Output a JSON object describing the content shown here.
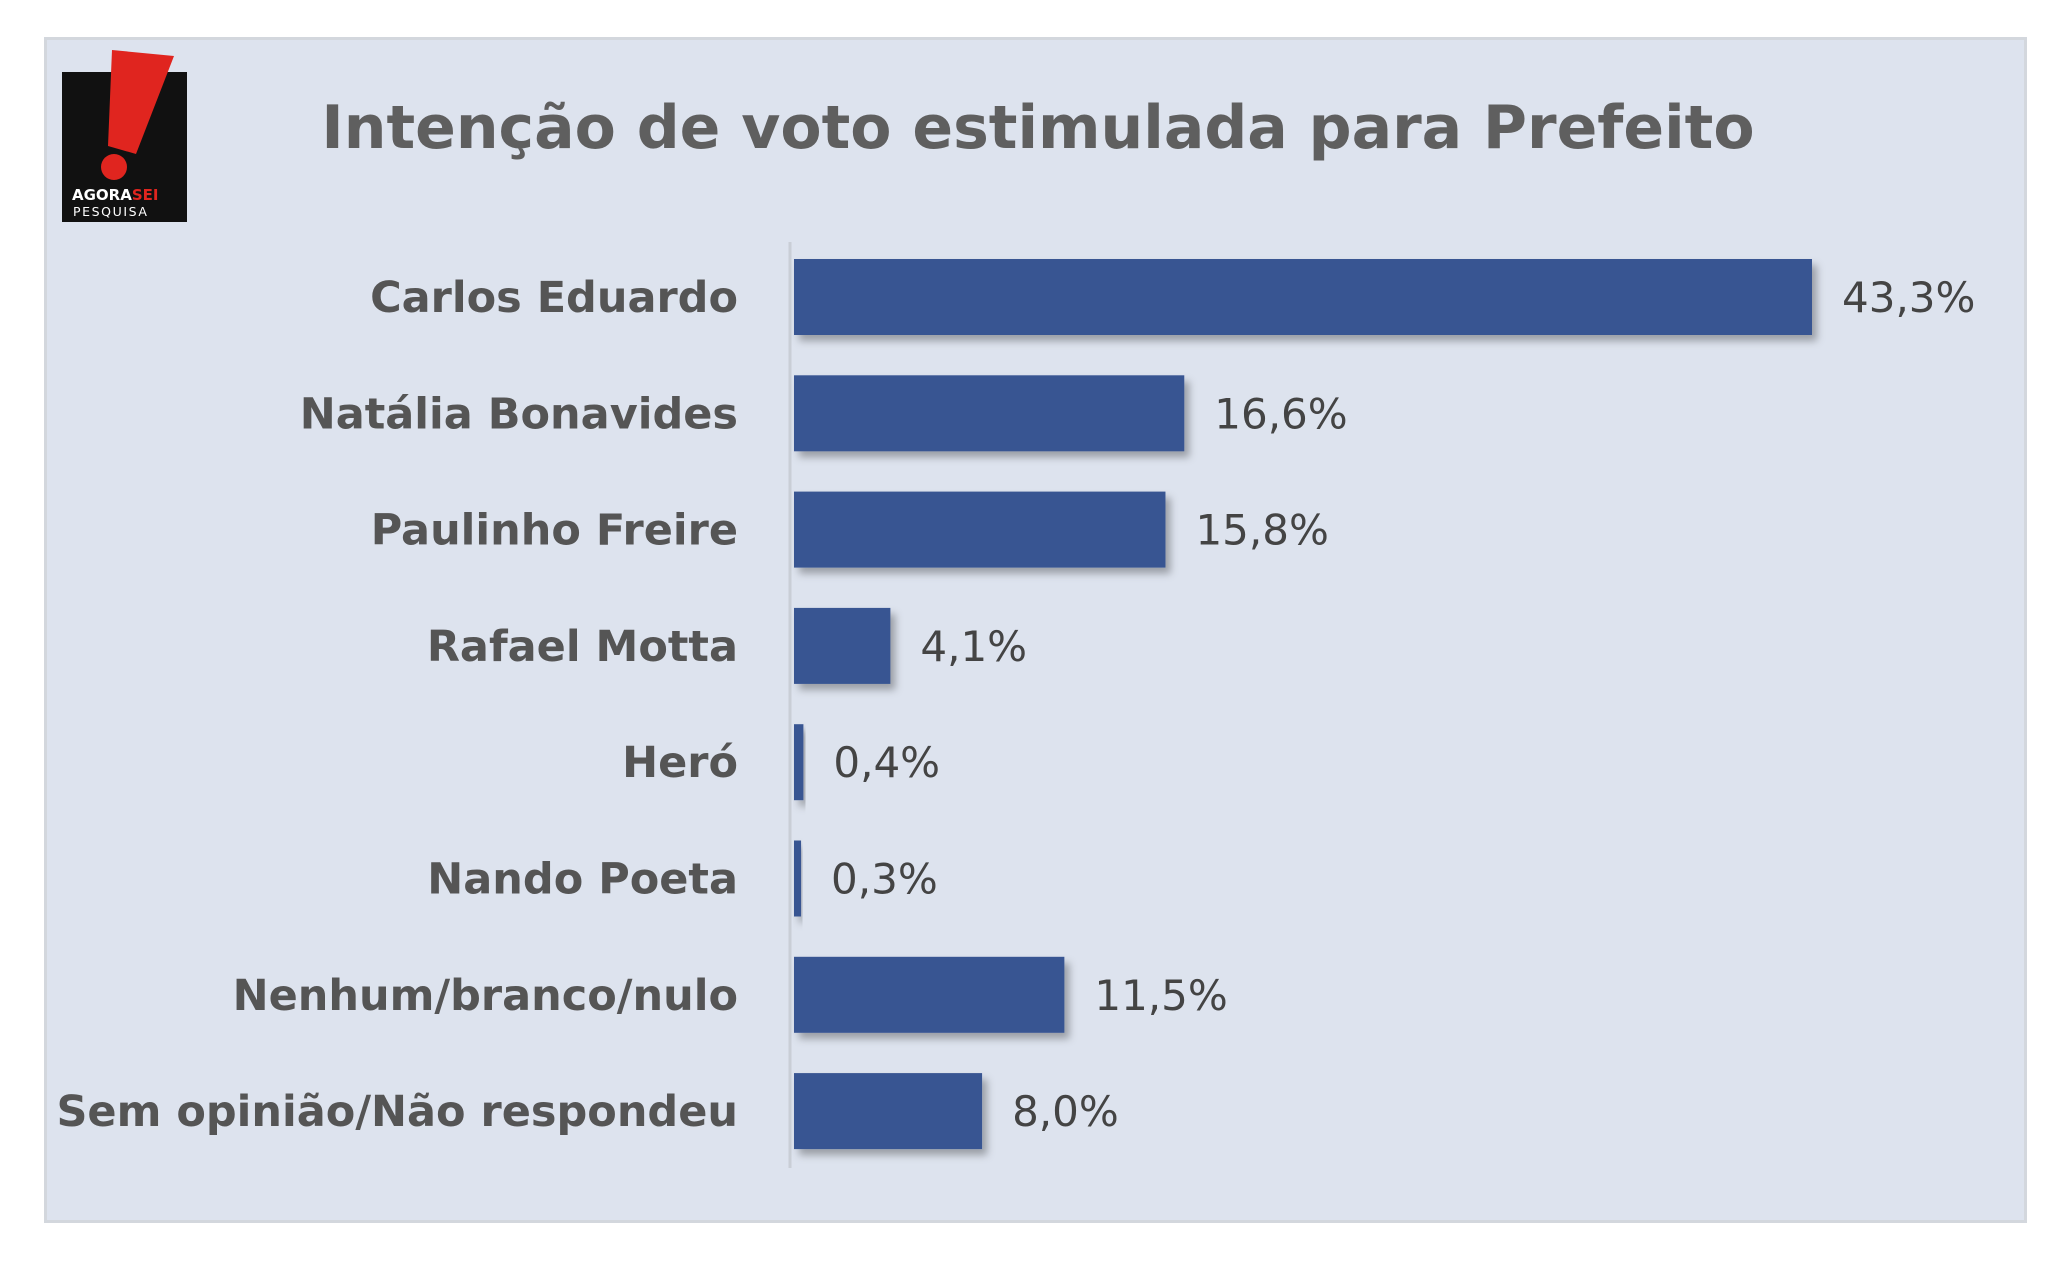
{
  "logo": {
    "brand_line1": "AGORA",
    "brand_line1_accent": "SEI",
    "brand_line2": "PESQUISA"
  },
  "colors": {
    "bar": "#385492",
    "panel": "#dde3ee",
    "logo_red": "#e0251f",
    "logo_black": "#111111"
  },
  "chart_data": {
    "type": "bar",
    "orientation": "horizontal",
    "title": "Intenção de voto estimulada para Prefeito",
    "categories": [
      "Carlos Eduardo",
      "Natália Bonavides",
      "Paulinho Freire",
      "Rafael Motta",
      "Heró",
      "Nando Poeta",
      "Nenhum/branco/nulo",
      "Sem opinião/Não respondeu"
    ],
    "values": [
      43.3,
      16.6,
      15.8,
      4.1,
      0.4,
      0.3,
      11.5,
      8.0
    ],
    "value_labels": [
      "43,3%",
      "16,6%",
      "15,8%",
      "4,1%",
      "0,4%",
      "0,3%",
      "11,5%",
      "8,0%"
    ],
    "unit": "%",
    "xlim": [
      0,
      43.3
    ],
    "grid": false,
    "legend": "none"
  }
}
